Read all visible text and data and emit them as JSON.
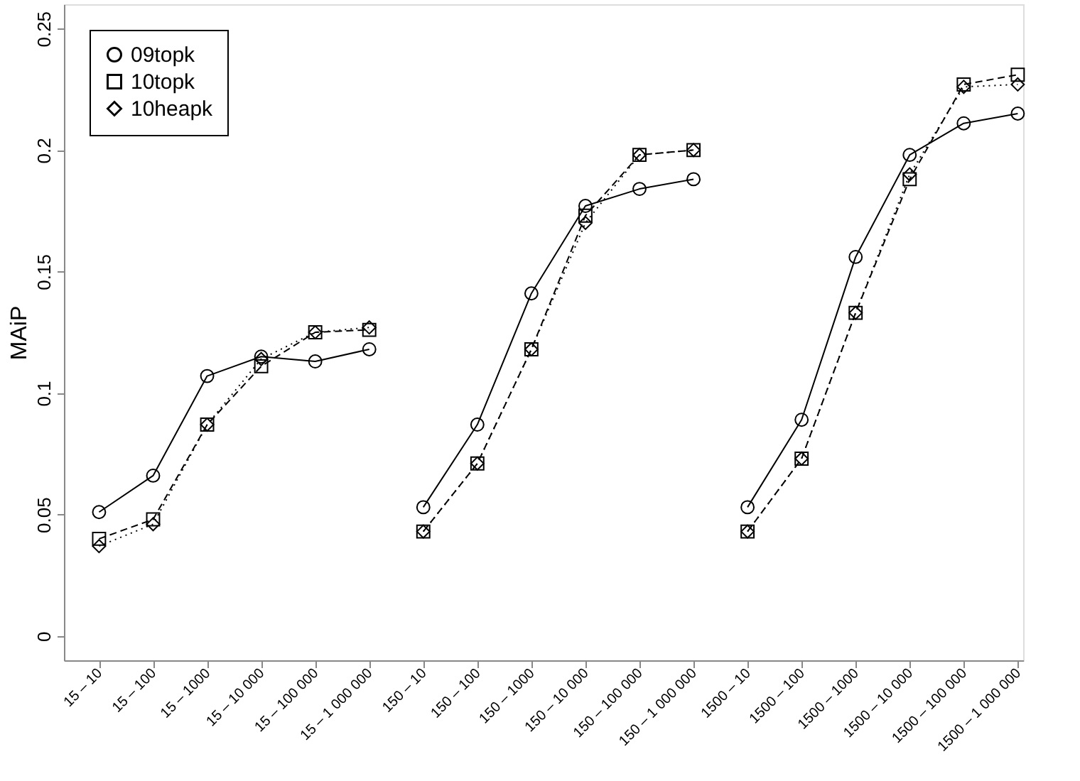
{
  "chart_data": {
    "type": "line",
    "ylabel": "MAiP",
    "categories": [
      "15 – 10",
      "15 – 100",
      "15 – 1000",
      "15 – 10 000",
      "15 – 100 000",
      "15 – 1 000 000",
      "150 – 10",
      "150 – 100",
      "150 – 1000",
      "150 – 10 000",
      "150 – 100 000",
      "150 – 1 000 000",
      "1500 – 10",
      "1500 – 100",
      "1500 – 1000",
      "1500 – 10 000",
      "1500 – 100 000",
      "1500 – 1 000 000"
    ],
    "series": [
      {
        "name": "09topk",
        "color": "#000000",
        "marker": "circle",
        "line_style": "solid",
        "values": [
          0.051,
          0.066,
          0.107,
          0.115,
          0.113,
          0.118,
          null,
          null,
          null,
          null,
          null,
          null,
          null,
          null,
          null,
          null,
          null,
          null
        ]
      },
      {
        "name": "10topk",
        "color": "#000000",
        "marker": "square",
        "line_style": "dashed",
        "values": [
          0.04,
          0.048,
          0.087,
          0.111,
          0.125,
          0.126,
          null,
          null,
          null,
          null,
          null,
          null,
          null,
          null,
          null,
          null,
          null,
          null
        ]
      },
      {
        "name": "10heapk",
        "color": "#000000",
        "marker": "diamond",
        "line_style": "dotted",
        "values": [
          0.037,
          0.046,
          0.087,
          0.114,
          0.125,
          0.127,
          null,
          null,
          null,
          null,
          null,
          null,
          null,
          null,
          null,
          null,
          null,
          null
        ]
      },
      {
        "color": "#000000",
        "marker": "circle",
        "line_style": "solid",
        "values": [
          null,
          null,
          null,
          null,
          null,
          null,
          0.053,
          0.087,
          0.141,
          0.177,
          0.184,
          0.188,
          null,
          null,
          null,
          null,
          null,
          null
        ]
      },
      {
        "color": "#000000",
        "marker": "square",
        "line_style": "dashed",
        "values": [
          null,
          null,
          null,
          null,
          null,
          null,
          0.043,
          0.071,
          0.118,
          0.173,
          0.198,
          0.2,
          null,
          null,
          null,
          null,
          null,
          null
        ]
      },
      {
        "color": "#000000",
        "marker": "diamond",
        "line_style": "dotted",
        "values": [
          null,
          null,
          null,
          null,
          null,
          null,
          0.043,
          0.071,
          0.118,
          0.17,
          0.198,
          0.2,
          null,
          null,
          null,
          null,
          null,
          null
        ]
      },
      {
        "color": "#000000",
        "marker": "circle",
        "line_style": "solid",
        "values": [
          null,
          null,
          null,
          null,
          null,
          null,
          null,
          null,
          null,
          null,
          null,
          null,
          0.053,
          0.089,
          0.156,
          0.198,
          0.211,
          0.215
        ]
      },
      {
        "color": "#000000",
        "marker": "square",
        "line_style": "dashed",
        "values": [
          null,
          null,
          null,
          null,
          null,
          null,
          null,
          null,
          null,
          null,
          null,
          null,
          0.043,
          0.073,
          0.133,
          0.188,
          0.227,
          0.231
        ]
      },
      {
        "color": "#000000",
        "marker": "diamond",
        "line_style": "dotted",
        "values": [
          null,
          null,
          null,
          null,
          null,
          null,
          null,
          null,
          null,
          null,
          null,
          null,
          0.043,
          0.073,
          0.133,
          0.19,
          0.226,
          0.227
        ]
      }
    ],
    "ylim": [
      -0.01,
      0.26
    ],
    "yticks": [
      0,
      0.05,
      0.1,
      0.15,
      0.2,
      0.25
    ],
    "grid": false,
    "legend": "top left"
  }
}
